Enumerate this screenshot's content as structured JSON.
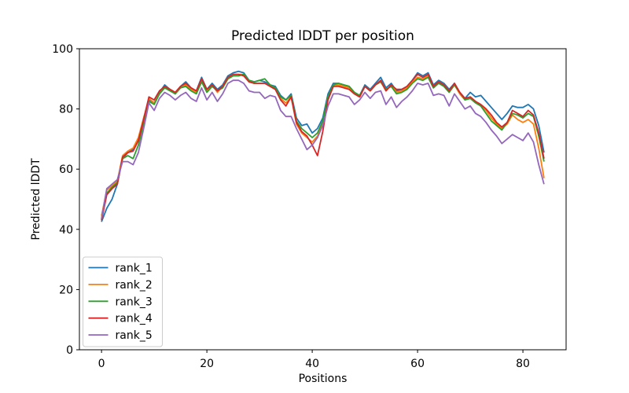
{
  "chart_data": {
    "type": "line",
    "title": "Predicted lDDT per position",
    "xlabel": "Positions",
    "ylabel": "Predicted lDDT",
    "xlim": [
      -4.2,
      88.2
    ],
    "ylim": [
      0,
      100
    ],
    "xticks": [
      0,
      20,
      40,
      60,
      80
    ],
    "yticks": [
      0,
      20,
      40,
      60,
      80,
      100
    ],
    "grid": false,
    "legend_position": "lower left",
    "x": [
      0,
      1,
      2,
      3,
      4,
      5,
      6,
      7,
      8,
      9,
      10,
      11,
      12,
      13,
      14,
      15,
      16,
      17,
      18,
      19,
      20,
      21,
      22,
      23,
      24,
      25,
      26,
      27,
      28,
      29,
      30,
      31,
      32,
      33,
      34,
      35,
      36,
      37,
      38,
      39,
      40,
      41,
      42,
      43,
      44,
      45,
      46,
      47,
      48,
      49,
      50,
      51,
      52,
      53,
      54,
      55,
      56,
      57,
      58,
      59,
      60,
      61,
      62,
      63,
      64,
      65,
      66,
      67,
      68,
      69,
      70,
      71,
      72,
      73,
      74,
      75,
      76,
      77,
      78,
      79,
      80,
      81,
      82,
      83,
      84
    ],
    "series": [
      {
        "name": "rank_1",
        "color": "#1f77b4",
        "values": [
          42.5,
          47,
          50,
          55,
          63.5,
          65.5,
          66.5,
          70,
          77,
          83,
          82,
          85.5,
          88,
          86.5,
          85,
          87.5,
          89,
          87,
          86,
          90.5,
          86.5,
          88.5,
          86.5,
          88,
          91,
          92,
          92.5,
          92,
          89.5,
          89,
          89.5,
          89,
          88,
          87.5,
          84.5,
          83,
          85,
          77,
          74.5,
          75,
          72,
          73.5,
          77,
          85,
          88.5,
          88.5,
          88,
          87.5,
          85.5,
          84.5,
          88,
          86.5,
          88.5,
          90.5,
          87,
          88.5,
          86,
          86.5,
          87.5,
          89.5,
          92,
          91,
          92,
          88,
          89.5,
          88.5,
          86.5,
          88.5,
          85.5,
          83.5,
          85.5,
          84,
          84.5,
          82.5,
          80.5,
          78.5,
          76.5,
          78.5,
          81,
          80.5,
          80.5,
          81.5,
          80,
          74.5,
          65.5
        ]
      },
      {
        "name": "rank_2",
        "color": "#ff7f0e",
        "values": [
          44.5,
          53,
          54.5,
          56,
          64.5,
          66,
          67,
          70.5,
          77,
          83.5,
          82,
          85,
          87.5,
          86.5,
          85.5,
          87,
          88,
          86.5,
          85.5,
          89.5,
          86,
          88,
          85.5,
          87.5,
          90.5,
          91.5,
          91.5,
          91.5,
          89,
          88.5,
          88.5,
          88.5,
          87.5,
          86.5,
          83.5,
          82,
          84,
          75,
          72,
          70.5,
          69,
          71,
          75,
          83.5,
          87.5,
          88,
          87.5,
          87,
          85,
          84,
          87.5,
          86,
          88,
          89,
          86,
          88,
          85.5,
          86,
          87,
          89,
          90.5,
          90,
          91,
          87.5,
          89,
          88,
          86,
          88,
          85,
          83,
          84,
          82.5,
          81,
          79.5,
          77,
          75,
          73.5,
          75,
          78,
          76.5,
          75.5,
          76.5,
          75,
          67,
          57
        ]
      },
      {
        "name": "rank_3",
        "color": "#2ca02c",
        "values": [
          43.5,
          52,
          54,
          55.5,
          63.5,
          64.5,
          63.5,
          68,
          75,
          82.5,
          81.5,
          85,
          87,
          86,
          85,
          87,
          87.5,
          86,
          85,
          89,
          85.5,
          87.5,
          86,
          87,
          90,
          91,
          91,
          91.5,
          89.5,
          89,
          89.5,
          90,
          88,
          87,
          84,
          83,
          84.5,
          76,
          73.5,
          72,
          70.5,
          72,
          76,
          84,
          88,
          88.5,
          88,
          87.5,
          85.5,
          84.5,
          87.5,
          86,
          88,
          89,
          86.5,
          87.5,
          85,
          85.5,
          86.5,
          88.5,
          90,
          89.5,
          90.5,
          87,
          88.5,
          87.5,
          85.5,
          88,
          85.5,
          83,
          83.5,
          82,
          81,
          78.5,
          76,
          74.5,
          73,
          75.5,
          78.5,
          78,
          77,
          78.5,
          77.5,
          71,
          62.5
        ]
      },
      {
        "name": "rank_4",
        "color": "#d62728",
        "values": [
          43,
          51.5,
          53.5,
          55,
          64,
          65.5,
          66,
          69.5,
          76.5,
          84,
          83,
          86,
          87.5,
          86.5,
          85.5,
          87.5,
          88.5,
          87,
          86,
          90,
          86.5,
          88,
          86,
          87.5,
          90.5,
          91.5,
          91.5,
          91,
          89,
          88.5,
          88.5,
          88.5,
          87.5,
          86.5,
          83,
          81,
          84,
          75.5,
          72.5,
          71,
          68,
          64.5,
          72.5,
          83,
          87.5,
          87.5,
          87,
          86.5,
          85,
          84,
          87.5,
          86,
          88,
          89.5,
          86,
          88,
          86.5,
          86.5,
          87.5,
          89.5,
          91.5,
          90.5,
          91.5,
          87.5,
          89,
          88,
          86,
          88.5,
          85.5,
          83.5,
          84,
          82.5,
          81.5,
          80,
          78,
          75.5,
          74,
          75.5,
          79.5,
          78.5,
          77.5,
          79.5,
          78,
          72,
          63.5
        ]
      },
      {
        "name": "rank_5",
        "color": "#9467bd",
        "values": [
          43.5,
          53.5,
          55,
          56.5,
          62.5,
          62.5,
          61.5,
          65.5,
          73.5,
          82,
          79.5,
          83.5,
          85.5,
          84.5,
          83,
          84.5,
          85.5,
          83.5,
          82.5,
          87,
          83,
          85.5,
          82.5,
          85,
          88.5,
          89.5,
          89.5,
          88.5,
          86,
          85.5,
          85.5,
          83.5,
          84.5,
          84,
          79.5,
          77.5,
          77.5,
          73.5,
          70,
          66.5,
          68,
          70.5,
          74.5,
          81,
          85,
          85,
          84.5,
          84,
          81.5,
          83,
          85.5,
          83.5,
          85.5,
          86,
          81.5,
          84,
          80.5,
          82.5,
          84,
          86,
          88.5,
          88,
          88.5,
          84.5,
          85,
          84.5,
          81,
          85,
          82.5,
          80,
          81,
          78.5,
          77.5,
          75.5,
          73,
          71,
          68.5,
          70,
          71.5,
          70.5,
          69.5,
          72,
          69,
          61.5,
          55
        ]
      }
    ]
  },
  "style": {
    "spine_color": "#000000",
    "legend_border_color": "#cccccc",
    "background_color": "#ffffff"
  }
}
